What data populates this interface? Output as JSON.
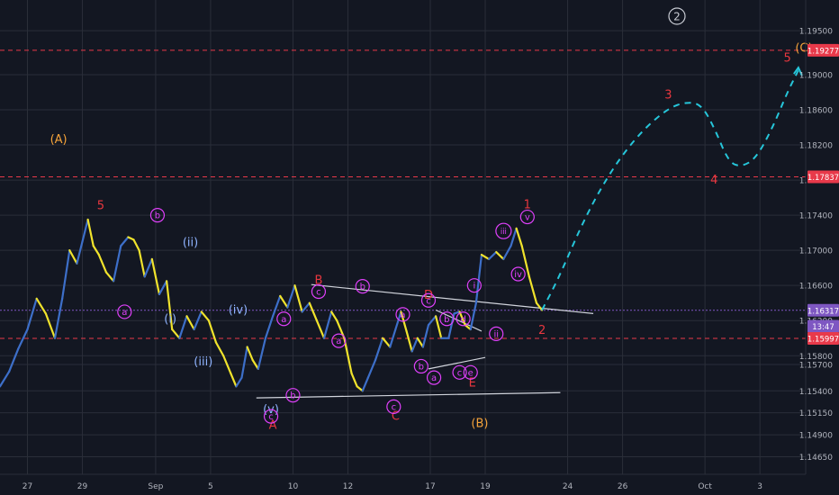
{
  "chart_data": {
    "type": "line",
    "title": "",
    "instrument_badge": "2",
    "colors": {
      "background": "#131722",
      "grid": "#2a2e39",
      "candles_up": "#3d6fc9",
      "candles_down": "#f0e32c",
      "wave_red": "#e8373f",
      "wave_magenta": "#e040fb",
      "wave_blue": "#8fb3ff",
      "wave_orange": "#f5a33a",
      "projection": "#26c6da",
      "trendline": "#d1d4dc",
      "level_line": "#e8394a",
      "current_price": "#7e57c2"
    },
    "y_axis": {
      "ticks": [
        "1.19500",
        "1.19000",
        "1.18600",
        "1.18200",
        "1.17800",
        "1.17400",
        "1.17000",
        "1.16600",
        "1.16200",
        "1.15800",
        "1.15700",
        "1.15400",
        "1.15150",
        "1.14900",
        "1.14650"
      ],
      "tick_values": [
        1.195,
        1.19,
        1.186,
        1.182,
        1.178,
        1.174,
        1.17,
        1.166,
        1.162,
        1.158,
        1.157,
        1.154,
        1.1515,
        1.149,
        1.1465
      ],
      "ylim": [
        1.1445,
        1.1985
      ]
    },
    "x_axis": {
      "tick_labels": [
        "27",
        "29",
        "Sep",
        "5",
        "10",
        "12",
        "17",
        "19",
        "24",
        "26",
        "Oct",
        "3"
      ],
      "tick_x": [
        0.5,
        3.5,
        7.5,
        10.5,
        15,
        18,
        22.5,
        25.5,
        30,
        33,
        37.5,
        40.5
      ],
      "xlim": [
        -1,
        43
      ]
    },
    "price_labels": [
      {
        "text": "1.19277",
        "value": 1.19277,
        "kind": "level"
      },
      {
        "text": "1.17837",
        "value": 1.17837,
        "kind": "level"
      },
      {
        "text": "1.16317",
        "value": 1.16317,
        "kind": "current"
      },
      {
        "text": "13:47",
        "value": 1.16135,
        "kind": "countdown"
      },
      {
        "text": "1.15997",
        "value": 1.15997,
        "kind": "level"
      }
    ],
    "levels": [
      1.19277,
      1.17837,
      1.15997
    ],
    "current_price": 1.16317,
    "price_path": [
      [
        -1,
        1.1545
      ],
      [
        -0.5,
        1.1562
      ],
      [
        0,
        1.1588
      ],
      [
        0.5,
        1.161
      ],
      [
        1,
        1.1645
      ],
      [
        1.5,
        1.1628
      ],
      [
        2,
        1.16
      ],
      [
        2.4,
        1.1645
      ],
      [
        2.8,
        1.17
      ],
      [
        3.2,
        1.1685
      ],
      [
        3.5,
        1.171
      ],
      [
        3.8,
        1.1735
      ],
      [
        4.1,
        1.1705
      ],
      [
        4.4,
        1.1695
      ],
      [
        4.8,
        1.1675
      ],
      [
        5.2,
        1.1665
      ],
      [
        5.6,
        1.1705
      ],
      [
        6,
        1.1715
      ],
      [
        6.3,
        1.1712
      ],
      [
        6.6,
        1.17
      ],
      [
        6.9,
        1.167
      ],
      [
        7.3,
        1.169
      ],
      [
        7.7,
        1.165
      ],
      [
        8.1,
        1.1665
      ],
      [
        8.4,
        1.161
      ],
      [
        8.8,
        1.16
      ],
      [
        9.2,
        1.1625
      ],
      [
        9.6,
        1.161
      ],
      [
        10,
        1.163
      ],
      [
        10.4,
        1.162
      ],
      [
        10.8,
        1.1595
      ],
      [
        11.2,
        1.158
      ],
      [
        11.6,
        1.156
      ],
      [
        11.9,
        1.1545
      ],
      [
        12.2,
        1.1555
      ],
      [
        12.5,
        1.159
      ],
      [
        12.8,
        1.1575
      ],
      [
        13.1,
        1.1565
      ],
      [
        13.5,
        1.16
      ],
      [
        13.9,
        1.1625
      ],
      [
        14.3,
        1.1648
      ],
      [
        14.7,
        1.1635
      ],
      [
        15.1,
        1.166
      ],
      [
        15.5,
        1.163
      ],
      [
        15.9,
        1.164
      ],
      [
        16.3,
        1.162
      ],
      [
        16.7,
        1.16
      ],
      [
        17.1,
        1.163
      ],
      [
        17.4,
        1.162
      ],
      [
        17.8,
        1.16
      ],
      [
        18.2,
        1.156
      ],
      [
        18.5,
        1.1545
      ],
      [
        18.8,
        1.154
      ],
      [
        19.1,
        1.1555
      ],
      [
        19.5,
        1.1575
      ],
      [
        19.9,
        1.16
      ],
      [
        20.3,
        1.159
      ],
      [
        20.6,
        1.161
      ],
      [
        20.9,
        1.163
      ],
      [
        21.2,
        1.1608
      ],
      [
        21.5,
        1.1585
      ],
      [
        21.8,
        1.16
      ],
      [
        22.1,
        1.159
      ],
      [
        22.4,
        1.1615
      ],
      [
        22.8,
        1.1625
      ],
      [
        23.1,
        1.16
      ],
      [
        23.5,
        1.16
      ],
      [
        23.8,
        1.1628
      ],
      [
        24.1,
        1.163
      ],
      [
        24.4,
        1.1615
      ],
      [
        24.7,
        1.161
      ],
      [
        25.0,
        1.164
      ],
      [
        25.3,
        1.1695
      ],
      [
        25.7,
        1.169
      ],
      [
        26.1,
        1.1698
      ],
      [
        26.5,
        1.169
      ],
      [
        26.9,
        1.1705
      ],
      [
        27.2,
        1.1725
      ],
      [
        27.5,
        1.1705
      ],
      [
        27.9,
        1.167
      ],
      [
        28.3,
        1.164
      ],
      [
        28.6,
        1.1632
      ]
    ],
    "series": [
      {
        "values": [
          [
            28.6,
            1.1632
          ],
          [
            29.5,
            1.1668
          ],
          [
            31,
            1.174
          ],
          [
            32.5,
            1.1795
          ],
          [
            34,
            1.1835
          ],
          [
            35.5,
            1.1862
          ],
          [
            36.5,
            1.1869
          ],
          [
            37.3,
            1.1866
          ],
          [
            38,
            1.184
          ],
          [
            38.8,
            1.18
          ],
          [
            39.5,
            1.1795
          ],
          [
            40.3,
            1.1805
          ],
          [
            41.2,
            1.184
          ],
          [
            42,
            1.188
          ],
          [
            42.6,
            1.1905
          ]
        ]
      }
    ],
    "trendlines": [
      [
        [
          16,
          1.1661
        ],
        [
          31.4,
          1.1628
        ]
      ],
      [
        [
          13,
          1.1532
        ],
        [
          29.6,
          1.1538
        ]
      ],
      [
        [
          22.4,
          1.1565
        ],
        [
          25.5,
          1.1578
        ]
      ],
      [
        [
          22.8,
          1.1632
        ],
        [
          25.3,
          1.1608
        ]
      ]
    ],
    "wave_labels": [
      {
        "text": "(A)",
        "x": 2.2,
        "y": 1.1827,
        "color": "orange",
        "circled": false
      },
      {
        "text": "(B)",
        "x": 25.2,
        "y": 1.1504,
        "color": "orange",
        "circled": false
      },
      {
        "text": "(C)",
        "x": 42.9,
        "y": 1.1931,
        "color": "orange",
        "circled": false
      },
      {
        "text": "5",
        "x": 4.5,
        "y": 1.1752,
        "color": "red",
        "circled": false
      },
      {
        "text": "B",
        "x": 16.4,
        "y": 1.1667,
        "color": "red",
        "circled": false
      },
      {
        "text": "D",
        "x": 22.4,
        "y": 1.165,
        "color": "red",
        "circled": false
      },
      {
        "text": "A",
        "x": 13.9,
        "y": 1.1502,
        "color": "red",
        "circled": false
      },
      {
        "text": "C",
        "x": 20.6,
        "y": 1.1512,
        "color": "red",
        "circled": false
      },
      {
        "text": "E",
        "x": 24.8,
        "y": 1.155,
        "color": "red",
        "circled": false
      },
      {
        "text": "1",
        "x": 27.8,
        "y": 1.1753,
        "color": "red",
        "circled": false
      },
      {
        "text": "2",
        "x": 28.6,
        "y": 1.161,
        "color": "red",
        "circled": false
      },
      {
        "text": "3",
        "x": 35.5,
        "y": 1.1878,
        "color": "red",
        "circled": false
      },
      {
        "text": "4",
        "x": 38,
        "y": 1.1781,
        "color": "red",
        "circled": false
      },
      {
        "text": "5",
        "x": 42,
        "y": 1.192,
        "color": "red",
        "circled": false
      },
      {
        "text": "b",
        "x": 7.6,
        "y": 1.174,
        "color": "magenta",
        "circled": true
      },
      {
        "text": "a",
        "x": 5.8,
        "y": 1.163,
        "color": "magenta",
        "circled": true
      },
      {
        "text": "(ii)",
        "x": 9.4,
        "y": 1.171,
        "color": "blue",
        "circled": false
      },
      {
        "text": "(i)",
        "x": 8.3,
        "y": 1.1623,
        "color": "blue",
        "circled": false
      },
      {
        "text": "(iv)",
        "x": 12,
        "y": 1.1633,
        "color": "blue",
        "circled": false
      },
      {
        "text": "(iii)",
        "x": 10.1,
        "y": 1.1574,
        "color": "blue",
        "circled": false
      },
      {
        "text": "(v)",
        "x": 13.8,
        "y": 1.152,
        "color": "blue",
        "circled": false
      },
      {
        "text": "a",
        "x": 14.5,
        "y": 1.1622,
        "color": "magenta",
        "circled": true
      },
      {
        "text": "b",
        "x": 15,
        "y": 1.1535,
        "color": "magenta",
        "circled": true
      },
      {
        "text": "c",
        "x": 13.8,
        "y": 1.1511,
        "color": "magenta",
        "circled": true
      },
      {
        "text": "c",
        "x": 16.4,
        "y": 1.1653,
        "color": "magenta",
        "circled": true
      },
      {
        "text": "a",
        "x": 17.5,
        "y": 1.1597,
        "color": "magenta",
        "circled": true
      },
      {
        "text": "b",
        "x": 18.8,
        "y": 1.1659,
        "color": "magenta",
        "circled": true
      },
      {
        "text": "c",
        "x": 20.5,
        "y": 1.1522,
        "color": "magenta",
        "circled": true
      },
      {
        "text": "c",
        "x": 22.4,
        "y": 1.1643,
        "color": "magenta",
        "circled": true
      },
      {
        "text": "a",
        "x": 21,
        "y": 1.1627,
        "color": "magenta",
        "circled": true
      },
      {
        "text": "b",
        "x": 22,
        "y": 1.1568,
        "color": "magenta",
        "circled": true
      },
      {
        "text": "a",
        "x": 22.7,
        "y": 1.1555,
        "color": "magenta",
        "circled": true
      },
      {
        "text": "b",
        "x": 23.4,
        "y": 1.1622,
        "color": "magenta",
        "circled": true
      },
      {
        "text": "d",
        "x": 24.3,
        "y": 1.1622,
        "color": "magenta",
        "circled": true
      },
      {
        "text": "c",
        "x": 24.1,
        "y": 1.1561,
        "color": "magenta",
        "circled": true
      },
      {
        "text": "e",
        "x": 24.7,
        "y": 1.1561,
        "color": "magenta",
        "circled": true
      },
      {
        "text": "i",
        "x": 24.9,
        "y": 1.166,
        "color": "magenta",
        "circled": true
      },
      {
        "text": "ii",
        "x": 26.1,
        "y": 1.1605,
        "color": "magenta",
        "circled": true
      },
      {
        "text": "iii",
        "x": 26.5,
        "y": 1.1722,
        "color": "magenta",
        "circled": true
      },
      {
        "text": "iv",
        "x": 27.3,
        "y": 1.1673,
        "color": "magenta",
        "circled": true
      },
      {
        "text": "v",
        "x": 27.8,
        "y": 1.1738,
        "color": "magenta",
        "circled": true
      }
    ]
  }
}
